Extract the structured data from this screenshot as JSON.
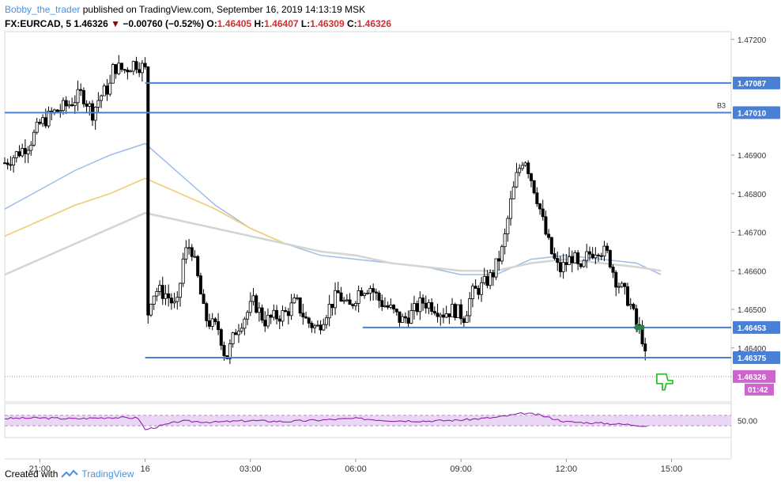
{
  "header": {
    "author": "Bobby_the_trader",
    "published_text": "published on TradingView.com, September 16, 2019 14:13:19 MSK"
  },
  "symbol_line": {
    "symbol": "FX:EURCAD, 5",
    "price": "1.46326",
    "change": "−0.00760 (−0.52%)",
    "open_label": "O:",
    "open": "1.46405",
    "high_label": "H:",
    "high": "1.46407",
    "low_label": "L:",
    "low": "1.46309",
    "close_label": "C:",
    "close": "1.46326"
  },
  "footer": {
    "created_with": "Created with",
    "brand": "TradingView"
  },
  "colors": {
    "candle_up": "#ffffff",
    "candle_down": "#000000",
    "hline": "#4a7fd6",
    "ema_blue": "#9dbde8",
    "ema_yellow": "#f0d080",
    "ema_gray": "#d4d4d4",
    "rsi": "#8e24aa",
    "rsi_band": "#ead7f5",
    "price_tag": "#cc66cc"
  },
  "chart_data": {
    "type": "candlestick",
    "symbol": "FX:EURCAD",
    "interval": "5",
    "ylim": [
      1.4626,
      1.4722
    ],
    "y_ticks": [
      1.472,
      1.469,
      1.468,
      1.467,
      1.466,
      1.465,
      1.464
    ],
    "y_tick_labels": [
      "1.47200",
      "1.46900",
      "1.46800",
      "1.46700",
      "1.46600",
      "1.46500",
      "1.46400"
    ],
    "x_ticks": [
      "21:00",
      "16",
      "03:00",
      "06:00",
      "09:00",
      "12:00",
      "15:00"
    ],
    "x_tick_hours": [
      -3,
      0,
      3,
      6,
      9,
      12,
      15
    ],
    "xlim_hours": [
      -4.0,
      16.7
    ],
    "horizontal_levels": [
      {
        "price": 1.47087,
        "label": "1.47087",
        "from_hour": 0.0
      },
      {
        "price": 1.4701,
        "label": "1.47010",
        "from_hour": -4.0,
        "tag": "B3"
      },
      {
        "price": 1.46453,
        "label": "1.46453",
        "from_hour": 6.2
      },
      {
        "price": 1.46375,
        "label": "1.46375",
        "from_hour": 0.0
      }
    ],
    "last_price": {
      "price": 1.46326,
      "label": "1.46326",
      "countdown": "01:42"
    },
    "candle_path": [
      [
        -4.0,
        1.4688
      ],
      [
        -3.7,
        1.469
      ],
      [
        -3.3,
        1.4693
      ],
      [
        -3.0,
        1.4698
      ],
      [
        -2.6,
        1.4701
      ],
      [
        -2.2,
        1.4703
      ],
      [
        -1.8,
        1.4706
      ],
      [
        -1.5,
        1.4701
      ],
      [
        -1.3,
        1.4705
      ],
      [
        -1.0,
        1.4708
      ],
      [
        -0.9,
        1.4713
      ],
      [
        -0.6,
        1.4712
      ],
      [
        -0.3,
        1.4714
      ],
      [
        -0.1,
        1.4713
      ],
      [
        0.0,
        1.4712
      ],
      [
        0.02,
        1.4638
      ],
      [
        0.1,
        1.4652
      ],
      [
        0.3,
        1.4655
      ],
      [
        0.6,
        1.4654
      ],
      [
        0.9,
        1.465
      ],
      [
        1.1,
        1.4664
      ],
      [
        1.3,
        1.4667
      ],
      [
        1.5,
        1.4658
      ],
      [
        1.7,
        1.4648
      ],
      [
        1.9,
        1.4646
      ],
      [
        2.1,
        1.4645
      ],
      [
        2.3,
        1.4637
      ],
      [
        2.6,
        1.4645
      ],
      [
        2.9,
        1.4649
      ],
      [
        3.1,
        1.4652
      ],
      [
        3.4,
        1.4647
      ],
      [
        3.7,
        1.4648
      ],
      [
        4.0,
        1.4649
      ],
      [
        4.3,
        1.4652
      ],
      [
        4.6,
        1.4647
      ],
      [
        4.9,
        1.4645
      ],
      [
        5.2,
        1.465
      ],
      [
        5.5,
        1.4654
      ],
      [
        5.8,
        1.465
      ],
      [
        6.1,
        1.4655
      ],
      [
        6.4,
        1.4656
      ],
      [
        6.7,
        1.4652
      ],
      [
        7.0,
        1.465
      ],
      [
        7.3,
        1.4647
      ],
      [
        7.6,
        1.4649
      ],
      [
        7.9,
        1.4652
      ],
      [
        8.2,
        1.4651
      ],
      [
        8.5,
        1.4649
      ],
      [
        8.8,
        1.465
      ],
      [
        9.1,
        1.4648
      ],
      [
        9.3,
        1.4654
      ],
      [
        9.6,
        1.4656
      ],
      [
        9.9,
        1.4659
      ],
      [
        10.2,
        1.4666
      ],
      [
        10.4,
        1.4677
      ],
      [
        10.6,
        1.4685
      ],
      [
        10.8,
        1.469
      ],
      [
        11.0,
        1.4684
      ],
      [
        11.2,
        1.4678
      ],
      [
        11.4,
        1.467
      ],
      [
        11.6,
        1.4664
      ],
      [
        11.8,
        1.466
      ],
      [
        12.0,
        1.4662
      ],
      [
        12.2,
        1.4664
      ],
      [
        12.4,
        1.4659
      ],
      [
        12.6,
        1.4664
      ],
      [
        12.9,
        1.4666
      ],
      [
        13.2,
        1.4664
      ],
      [
        13.4,
        1.4658
      ],
      [
        13.6,
        1.4655
      ],
      [
        13.8,
        1.4652
      ],
      [
        14.0,
        1.4646
      ],
      [
        14.2,
        1.4642
      ],
      [
        14.3,
        1.4633
      ]
    ],
    "series": [
      {
        "type": "line",
        "points": [
          [
            -4.0,
            1.4676
          ],
          [
            -3.0,
            1.4681
          ],
          [
            -2.0,
            1.4686
          ],
          [
            -1.0,
            1.469
          ],
          [
            0.0,
            1.4693
          ],
          [
            1.0,
            1.4685
          ],
          [
            2.0,
            1.4677
          ],
          [
            3.0,
            1.4671
          ],
          [
            4.0,
            1.4667
          ],
          [
            5.0,
            1.4664
          ],
          [
            6.0,
            1.4663
          ],
          [
            7.0,
            1.4662
          ],
          [
            8.0,
            1.4661
          ],
          [
            9.0,
            1.4659
          ],
          [
            10.0,
            1.4659
          ],
          [
            11.0,
            1.4663
          ],
          [
            12.0,
            1.4664
          ],
          [
            13.0,
            1.4663
          ],
          [
            14.0,
            1.4662
          ],
          [
            14.7,
            1.4659
          ]
        ]
      },
      {
        "type": "line",
        "points": [
          [
            -4.0,
            1.4669
          ],
          [
            -3.0,
            1.4673
          ],
          [
            -2.0,
            1.4677
          ],
          [
            -1.0,
            1.468
          ],
          [
            0.0,
            1.4684
          ],
          [
            1.0,
            1.468
          ],
          [
            2.0,
            1.4676
          ],
          [
            3.0,
            1.4671
          ],
          [
            4.0,
            1.4667
          ],
          [
            5.0,
            1.4665
          ],
          [
            6.0,
            1.4664
          ],
          [
            7.0,
            1.4662
          ],
          [
            8.0,
            1.4661
          ],
          [
            9.0,
            1.466
          ],
          [
            10.0,
            1.466
          ],
          [
            11.0,
            1.4662
          ],
          [
            12.0,
            1.4663
          ],
          [
            13.0,
            1.4662
          ],
          [
            14.0,
            1.4661
          ],
          [
            14.7,
            1.466
          ]
        ]
      },
      {
        "type": "line",
        "points": [
          [
            -4.0,
            1.4659
          ],
          [
            -3.0,
            1.4663
          ],
          [
            -2.0,
            1.4667
          ],
          [
            -1.0,
            1.4671
          ],
          [
            0.0,
            1.4675
          ],
          [
            1.0,
            1.4673
          ],
          [
            2.0,
            1.4671
          ],
          [
            3.0,
            1.4669
          ],
          [
            4.0,
            1.4667
          ],
          [
            5.0,
            1.4665
          ],
          [
            6.0,
            1.4664
          ],
          [
            7.0,
            1.4662
          ],
          [
            8.0,
            1.4661
          ],
          [
            9.0,
            1.466
          ],
          [
            10.0,
            1.466
          ],
          [
            11.0,
            1.4662
          ],
          [
            12.0,
            1.4663
          ],
          [
            13.0,
            1.4662
          ],
          [
            14.0,
            1.4661
          ],
          [
            14.7,
            1.466
          ]
        ]
      }
    ],
    "rsi": {
      "label": "50.00",
      "ylim": [
        0,
        100
      ],
      "band": [
        30,
        70
      ],
      "points": [
        [
          -4.0,
          58
        ],
        [
          -3.0,
          60
        ],
        [
          -2.0,
          57
        ],
        [
          -1.0,
          62
        ],
        [
          -0.2,
          60
        ],
        [
          0.0,
          15
        ],
        [
          1.0,
          48
        ],
        [
          2.0,
          44
        ],
        [
          3.0,
          50
        ],
        [
          4.0,
          46
        ],
        [
          5.0,
          52
        ],
        [
          6.0,
          58
        ],
        [
          7.0,
          50
        ],
        [
          8.0,
          48
        ],
        [
          9.0,
          52
        ],
        [
          10.0,
          62
        ],
        [
          10.8,
          78
        ],
        [
          11.2,
          72
        ],
        [
          12.0,
          45
        ],
        [
          13.0,
          40
        ],
        [
          14.0,
          33
        ],
        [
          14.3,
          28
        ]
      ]
    },
    "markers": [
      {
        "type": "buy-flag-green",
        "hour": 14.0,
        "price": 1.46453
      },
      {
        "type": "thumbs-down-icon",
        "hour": 14.4,
        "price": 1.4632
      }
    ]
  }
}
